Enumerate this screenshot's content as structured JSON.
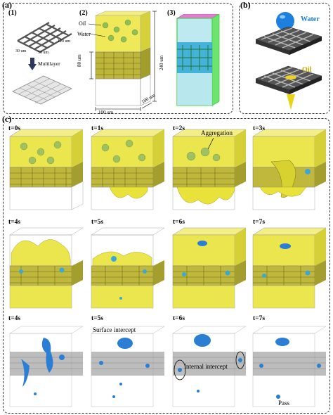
{
  "panel_a": {
    "label": "(a)",
    "sub1": "(1)",
    "sub2": "(2)",
    "sub3": "(3)",
    "dim_30": "30 um",
    "dim_50": "50 um",
    "dim_120": "120 um",
    "multilayer": "Multilayer",
    "oil": "Oil",
    "water": "Water",
    "dim_80": "80 um",
    "dim_240": "240 um",
    "dim_100a": "100 um",
    "dim_100b": "100 um"
  },
  "panel_b": {
    "label": "(b)",
    "water": "Water",
    "oil": "Oil"
  },
  "panel_c": {
    "label": "(c)",
    "row1": [
      "t=0s",
      "t=1s",
      "t=2s",
      "t=3s"
    ],
    "row2": [
      "t=4s",
      "t=5s",
      "t=6s",
      "t=7s"
    ],
    "row3": [
      "t=4s",
      "t=5s",
      "t=6s",
      "t=7s"
    ],
    "aggregation": "Aggregation",
    "surface_intercept": "Surface intercept",
    "internal_intercept": "Internal intercept",
    "pass": "Pass"
  },
  "colors": {
    "yellow": "#e8e23a",
    "mesh": "#b9b22a",
    "blue": "#2a7fd4",
    "oil_drop": "#8fbf55"
  }
}
